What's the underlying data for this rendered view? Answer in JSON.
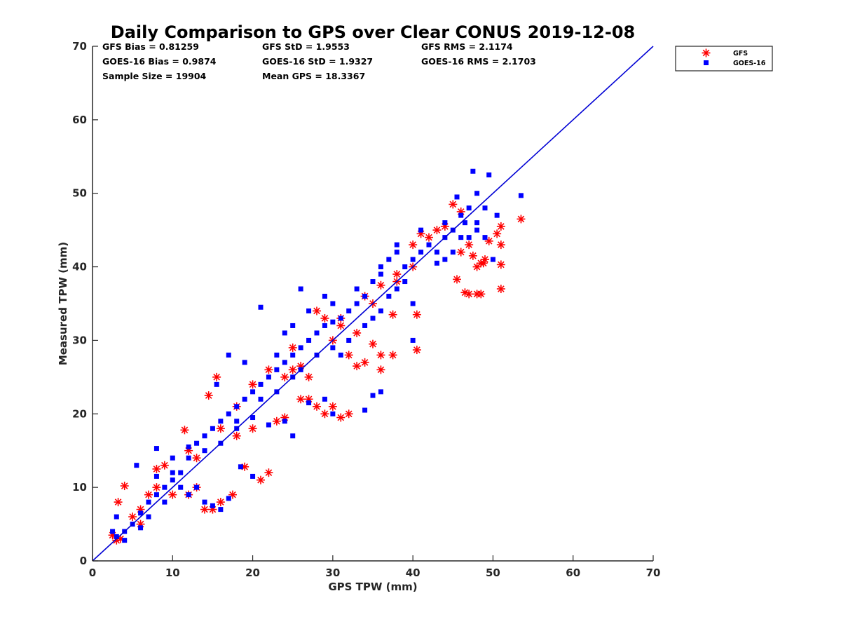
{
  "chart_data": {
    "type": "scatter",
    "title": "Daily Comparison to GPS over Clear CONUS 2019-12-08",
    "xlabel": "GPS TPW (mm)",
    "ylabel": "Measured TPW (mm)",
    "xlim": [
      0,
      70
    ],
    "ylim": [
      0,
      70
    ],
    "xticks": [
      "0",
      "10",
      "20",
      "30",
      "40",
      "50",
      "60",
      "70"
    ],
    "yticks": [
      "0",
      "10",
      "20",
      "30",
      "40",
      "50",
      "60",
      "70"
    ],
    "grid": false,
    "legend_position": "outside-top-right",
    "reference_line": {
      "name": "1:1 line",
      "color": "#0000d4",
      "from": [
        0,
        0
      ],
      "to": [
        70,
        70
      ]
    },
    "stats": {
      "gfs_bias": "GFS Bias = 0.81259",
      "gfs_std": "GFS StD = 1.9553",
      "gfs_rms": "GFS RMS = 2.1174",
      "goes_bias": "GOES-16 Bias = 0.9874",
      "goes_std": "GOES-16 StD = 1.9327",
      "goes_rms": "GOES-16 RMS = 2.1703",
      "sample_size": "Sample Size = 19904",
      "mean_gps": "Mean GPS = 18.3367"
    },
    "series": [
      {
        "name": "GFS",
        "marker": "asterisk",
        "color": "#ff0000",
        "points": [
          [
            2.5,
            3.5
          ],
          [
            3,
            2.8
          ],
          [
            3.5,
            3
          ],
          [
            4,
            10.2
          ],
          [
            3.2,
            8
          ],
          [
            5,
            6
          ],
          [
            6,
            7
          ],
          [
            7,
            9
          ],
          [
            8,
            12.5
          ],
          [
            9,
            13
          ],
          [
            10,
            9
          ],
          [
            11.5,
            17.8
          ],
          [
            12,
            9
          ],
          [
            13,
            10
          ],
          [
            14,
            7
          ],
          [
            15,
            7
          ],
          [
            16,
            8
          ],
          [
            17.5,
            9
          ],
          [
            15.5,
            25
          ],
          [
            14.5,
            22.5
          ],
          [
            19,
            12.8
          ],
          [
            21,
            11
          ],
          [
            22,
            12
          ],
          [
            18,
            17
          ],
          [
            20,
            18
          ],
          [
            23,
            19
          ],
          [
            24,
            19.5
          ],
          [
            26,
            22
          ],
          [
            27,
            22
          ],
          [
            28,
            21
          ],
          [
            29,
            20
          ],
          [
            30,
            21
          ],
          [
            31,
            19.5
          ],
          [
            32,
            20
          ],
          [
            24,
            25
          ],
          [
            25,
            26
          ],
          [
            26,
            26.5
          ],
          [
            27,
            25
          ],
          [
            28,
            34
          ],
          [
            29,
            33
          ],
          [
            30,
            30
          ],
          [
            31,
            32
          ],
          [
            32,
            28
          ],
          [
            33,
            26.5
          ],
          [
            34,
            27
          ],
          [
            35,
            29.5
          ],
          [
            36,
            28
          ],
          [
            37.5,
            28
          ],
          [
            37.5,
            33.5
          ],
          [
            36,
            26
          ],
          [
            38,
            38
          ],
          [
            40,
            43
          ],
          [
            40.5,
            33.5
          ],
          [
            40.5,
            28.7
          ],
          [
            41,
            44.5
          ],
          [
            42,
            44
          ],
          [
            43,
            45
          ],
          [
            44,
            45.5
          ],
          [
            45,
            48.5
          ],
          [
            46,
            47.5
          ],
          [
            46,
            42
          ],
          [
            45.5,
            38.3
          ],
          [
            46.5,
            36.5
          ],
          [
            47,
            36.3
          ],
          [
            48,
            36.3
          ],
          [
            48.5,
            36.3
          ],
          [
            48,
            40
          ],
          [
            48.5,
            40.5
          ],
          [
            49,
            41
          ],
          [
            49.5,
            43.5
          ],
          [
            50.5,
            44.5
          ],
          [
            51,
            43
          ],
          [
            51,
            40.3
          ],
          [
            51,
            37
          ],
          [
            51,
            45.5
          ],
          [
            53.5,
            46.5
          ],
          [
            47,
            43
          ],
          [
            47.5,
            41.5
          ],
          [
            48.8,
            40.5
          ],
          [
            40,
            40
          ],
          [
            38,
            39
          ],
          [
            35,
            35
          ],
          [
            33,
            31
          ],
          [
            20,
            24
          ],
          [
            22,
            26
          ],
          [
            12,
            15
          ],
          [
            8,
            10
          ],
          [
            6,
            5
          ],
          [
            13,
            14
          ],
          [
            16,
            18
          ],
          [
            18,
            21
          ],
          [
            25,
            29
          ],
          [
            31,
            33
          ],
          [
            34,
            36
          ],
          [
            36,
            37.5
          ]
        ]
      },
      {
        "name": "GOES-16",
        "marker": "square",
        "color": "#0000ff",
        "points": [
          [
            2.5,
            4
          ],
          [
            3,
            3.3
          ],
          [
            4,
            2.8
          ],
          [
            5,
            5
          ],
          [
            6,
            6.5
          ],
          [
            7,
            8
          ],
          [
            8,
            9
          ],
          [
            9,
            10
          ],
          [
            10,
            11
          ],
          [
            11,
            12
          ],
          [
            12,
            14
          ],
          [
            13,
            16
          ],
          [
            14,
            17
          ],
          [
            15,
            18
          ],
          [
            16,
            19
          ],
          [
            17,
            20
          ],
          [
            18,
            21
          ],
          [
            19,
            22
          ],
          [
            20,
            23
          ],
          [
            21,
            24
          ],
          [
            22,
            25
          ],
          [
            23,
            26
          ],
          [
            24,
            27
          ],
          [
            25,
            28
          ],
          [
            26,
            29
          ],
          [
            27,
            30
          ],
          [
            28,
            31
          ],
          [
            29,
            32
          ],
          [
            30,
            32.5
          ],
          [
            31,
            33
          ],
          [
            32,
            34
          ],
          [
            33,
            35
          ],
          [
            34,
            36
          ],
          [
            35,
            38
          ],
          [
            36,
            40
          ],
          [
            37,
            41
          ],
          [
            38,
            42
          ],
          [
            39,
            40
          ],
          [
            40,
            41
          ],
          [
            41,
            42
          ],
          [
            42,
            43
          ],
          [
            43,
            42
          ],
          [
            44,
            44
          ],
          [
            45,
            45
          ],
          [
            46,
            47
          ],
          [
            47,
            48
          ],
          [
            48,
            50
          ],
          [
            47.5,
            53
          ],
          [
            49.5,
            52.5
          ],
          [
            53.5,
            49.7
          ],
          [
            21,
            34.5
          ],
          [
            26,
            37
          ],
          [
            25,
            17
          ],
          [
            18,
            18
          ],
          [
            14,
            8
          ],
          [
            13,
            10
          ],
          [
            12,
            9
          ],
          [
            5.5,
            13
          ],
          [
            8,
            15.3
          ],
          [
            10,
            12
          ],
          [
            40,
            30
          ],
          [
            40,
            35
          ],
          [
            36,
            23
          ],
          [
            35,
            22.5
          ],
          [
            34,
            20.5
          ],
          [
            30,
            20
          ],
          [
            29,
            22
          ],
          [
            27,
            21.5
          ],
          [
            24,
            19
          ],
          [
            22,
            18.5
          ],
          [
            20,
            11.5
          ],
          [
            18.5,
            12.8
          ],
          [
            17,
            8.5
          ],
          [
            16,
            7
          ],
          [
            15,
            7.5
          ],
          [
            15.5,
            24
          ],
          [
            17,
            28
          ],
          [
            19,
            27
          ],
          [
            23,
            28
          ],
          [
            24,
            31
          ],
          [
            25,
            32
          ],
          [
            27,
            34
          ],
          [
            29,
            36
          ],
          [
            30,
            35
          ],
          [
            33,
            37
          ],
          [
            36,
            39
          ],
          [
            38,
            43
          ],
          [
            41,
            45
          ],
          [
            44,
            46
          ],
          [
            45.5,
            49.5
          ],
          [
            46.5,
            46
          ],
          [
            48,
            45
          ],
          [
            49,
            44
          ],
          [
            50,
            41
          ],
          [
            47,
            44
          ],
          [
            49,
            48
          ],
          [
            50.5,
            47
          ],
          [
            45,
            42
          ],
          [
            6,
            4.5
          ],
          [
            4,
            4
          ],
          [
            3,
            6
          ],
          [
            7,
            6
          ],
          [
            9,
            8
          ],
          [
            11,
            10
          ],
          [
            8,
            11.5
          ],
          [
            10,
            14
          ],
          [
            12,
            15.5
          ],
          [
            14,
            15
          ],
          [
            16,
            16
          ],
          [
            18,
            19
          ],
          [
            20,
            19.5
          ],
          [
            21,
            22
          ],
          [
            23,
            23
          ],
          [
            25,
            25
          ],
          [
            26,
            26
          ],
          [
            28,
            28
          ],
          [
            30,
            29
          ],
          [
            31,
            28
          ],
          [
            32,
            30
          ],
          [
            34,
            32
          ],
          [
            35,
            33
          ],
          [
            36,
            34
          ],
          [
            37,
            36
          ],
          [
            38,
            37
          ],
          [
            39,
            38
          ],
          [
            43,
            40.5
          ],
          [
            44,
            41
          ],
          [
            46,
            44
          ],
          [
            48,
            46
          ]
        ]
      }
    ]
  }
}
